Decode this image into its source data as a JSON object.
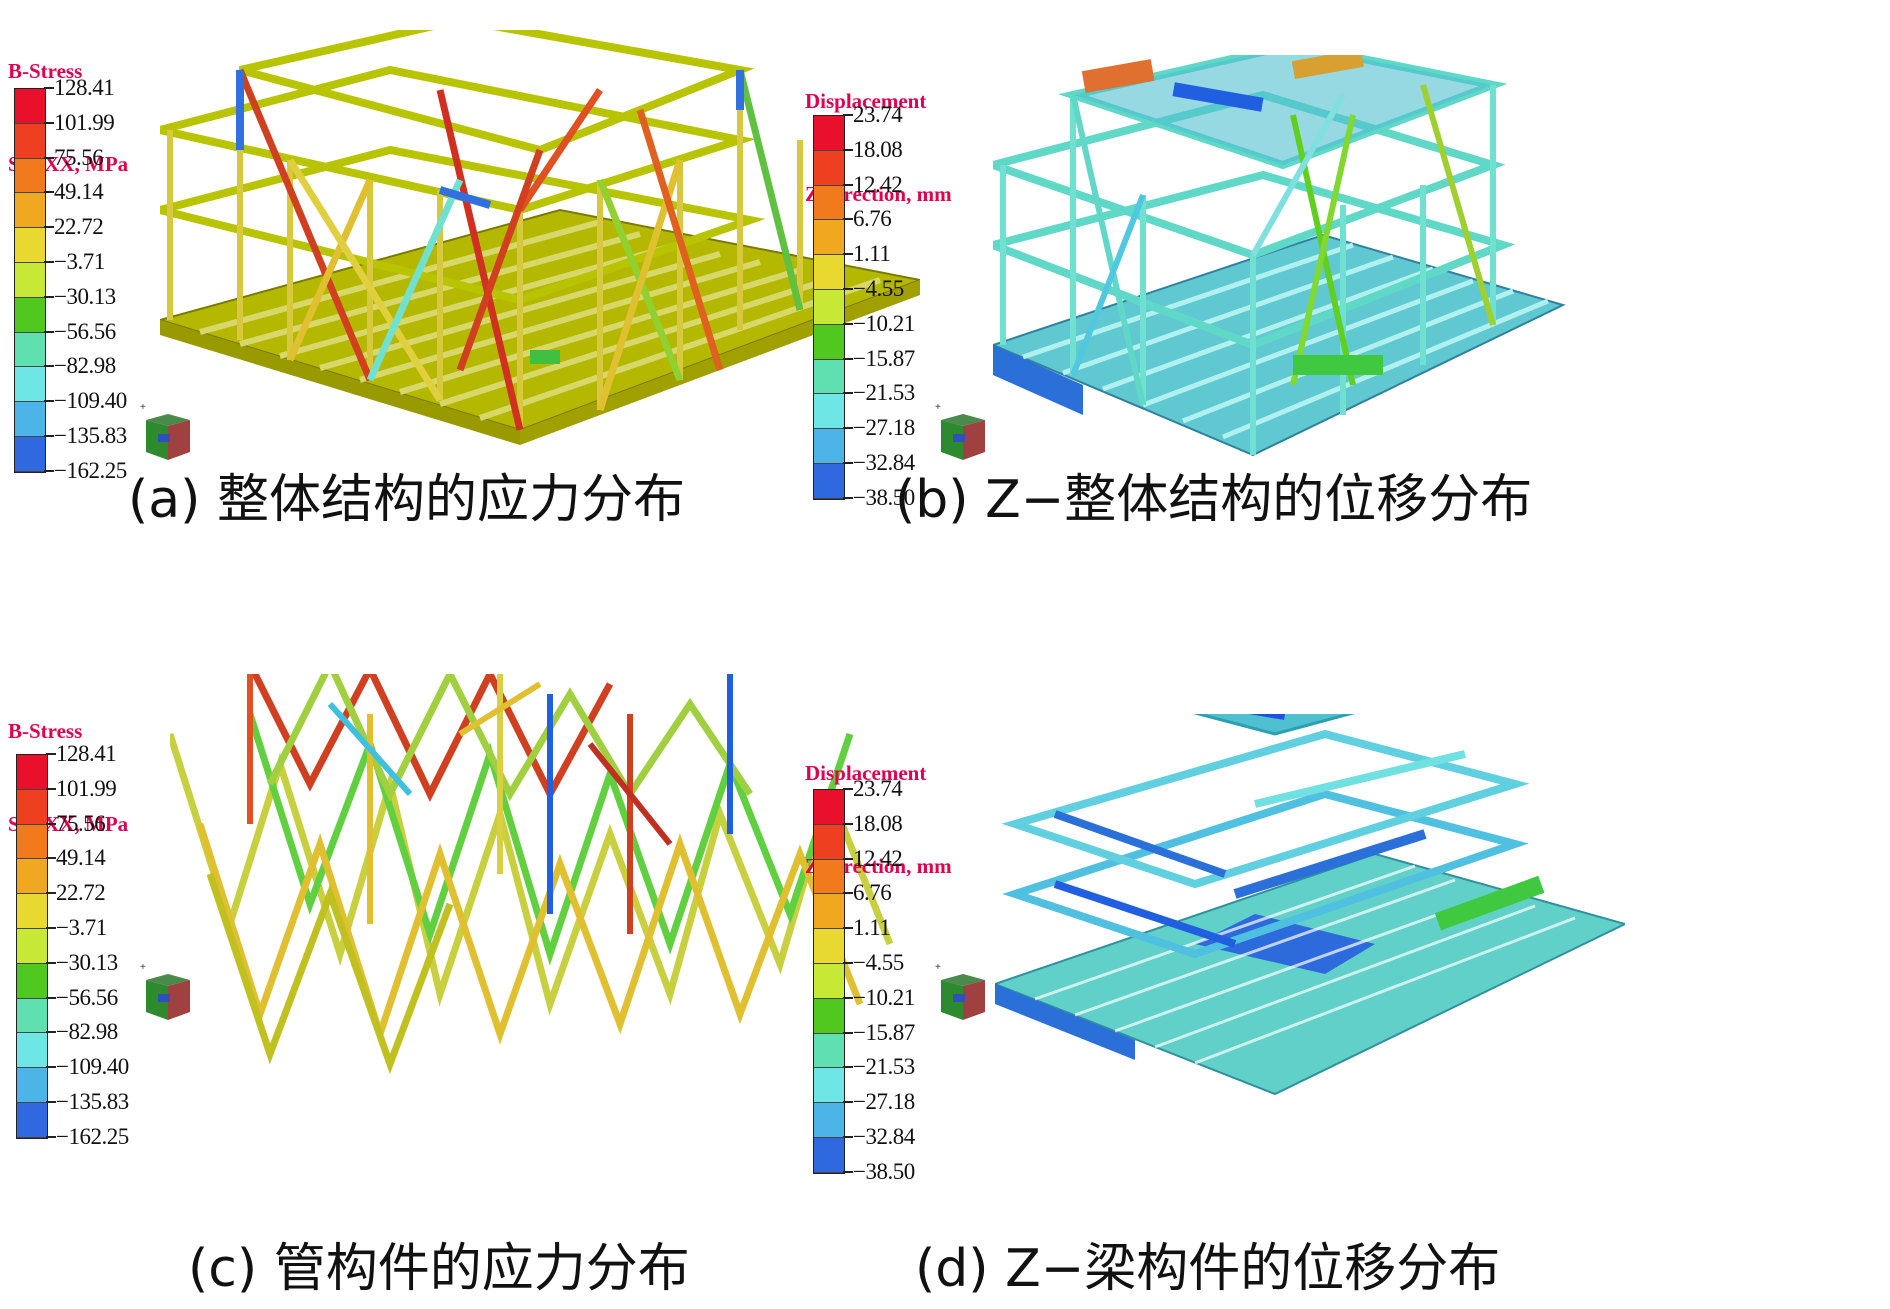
{
  "panels": [
    {
      "id": "a",
      "title_line1": "B-Stress",
      "title_line2": "SIGXX, MPa",
      "legend_values": [
        "128.41",
        "101.99",
        "75.56",
        "49.14",
        "22.72",
        "−3.71",
        "−30.13",
        "−56.56",
        "−82.98",
        "−109.40",
        "−135.83",
        "−162.25"
      ],
      "caption": "(a) 整体结构的应力分布"
    },
    {
      "id": "b",
      "title_line1": "Displacement",
      "title_line2": "Z-direction, mm",
      "legend_values": [
        "23.74",
        "18.08",
        "12.42",
        "6.76",
        "1.11",
        "−4.55",
        "−10.21",
        "−15.87",
        "−21.53",
        "−27.18",
        "−32.84",
        "−38.50"
      ],
      "caption": "(b) Z−整体结构的位移分布"
    },
    {
      "id": "c",
      "title_line1": "B-Stress",
      "title_line2": "SIGXX, MPa",
      "legend_values": [
        "128.41",
        "101.99",
        "75.56",
        "49.14",
        "22.72",
        "−3.71",
        "−30.13",
        "−56.56",
        "−82.98",
        "−109.40",
        "−135.83",
        "−162.25"
      ],
      "caption": "(c) 管构件的应力分布"
    },
    {
      "id": "d",
      "title_line1": "Displacement",
      "title_line2": "Z-direction, mm",
      "legend_values": [
        "23.74",
        "18.08",
        "12.42",
        "6.76",
        "1.11",
        "−4.55",
        "−10.21",
        "−15.87",
        "−21.53",
        "−27.18",
        "−32.84",
        "−38.50"
      ],
      "caption": "(d) Z−梁构件的位移分布"
    }
  ],
  "legend_colors": [
    "#e8102a",
    "#ee4020",
    "#f07a1c",
    "#f0a820",
    "#e8d830",
    "#c8e836",
    "#50c820",
    "#5fe0b0",
    "#6ee6e6",
    "#4cb4e6",
    "#3068e0",
    "#1838e0"
  ],
  "colors": {
    "title": "#e0004d",
    "stress_base": "#b8c000",
    "displacement_base": "#60d8d0"
  }
}
